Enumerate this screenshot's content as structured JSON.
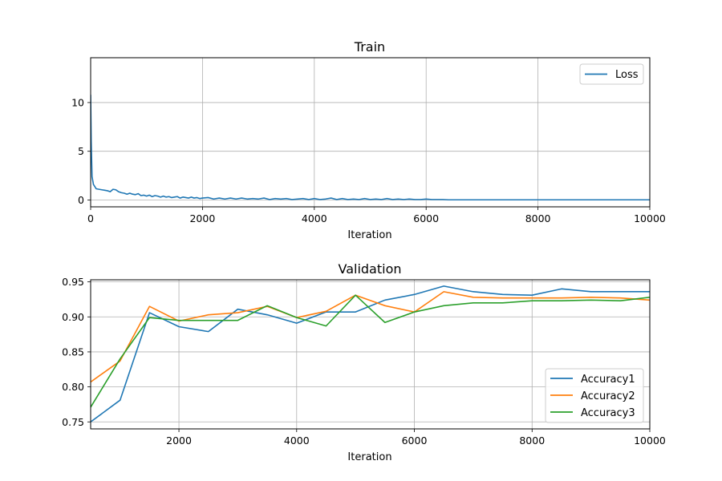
{
  "chart_data": [
    {
      "type": "line",
      "title": "Train",
      "xlabel": "Iteration",
      "ylabel": "",
      "xlim": [
        0,
        10000
      ],
      "ylim": [
        -0.7,
        14.6
      ],
      "xticks": [
        0,
        2000,
        4000,
        6000,
        8000,
        10000
      ],
      "yticks": [
        0,
        5,
        10
      ],
      "grid": true,
      "legend": "upper right",
      "series": [
        {
          "name": "Loss",
          "color": "#1f77b4",
          "x": [
            0,
            10,
            25,
            50,
            100,
            150,
            200,
            250,
            300,
            350,
            400,
            450,
            500,
            550,
            600,
            650,
            700,
            750,
            800,
            850,
            900,
            950,
            1000,
            1050,
            1100,
            1150,
            1200,
            1250,
            1300,
            1350,
            1400,
            1450,
            1500,
            1550,
            1600,
            1650,
            1700,
            1750,
            1800,
            1850,
            1900,
            1950,
            2000,
            2100,
            2200,
            2300,
            2400,
            2500,
            2600,
            2700,
            2800,
            2900,
            3000,
            3100,
            3200,
            3300,
            3400,
            3500,
            3600,
            3700,
            3800,
            3900,
            4000,
            4100,
            4200,
            4300,
            4400,
            4500,
            4600,
            4700,
            4800,
            4900,
            5000,
            5100,
            5200,
            5300,
            5400,
            5500,
            5600,
            5700,
            5800,
            5900,
            6000,
            6100,
            6200,
            6300,
            6400,
            6600,
            6800,
            7000,
            7500,
            8000,
            8500,
            9000,
            9500,
            10000
          ],
          "y": [
            10.8,
            6.0,
            2.4,
            1.6,
            1.15,
            1.1,
            1.05,
            1.0,
            0.95,
            0.85,
            1.1,
            1.05,
            0.85,
            0.75,
            0.7,
            0.6,
            0.7,
            0.6,
            0.55,
            0.65,
            0.45,
            0.5,
            0.4,
            0.5,
            0.35,
            0.45,
            0.4,
            0.3,
            0.4,
            0.3,
            0.35,
            0.25,
            0.3,
            0.35,
            0.2,
            0.3,
            0.25,
            0.2,
            0.3,
            0.2,
            0.25,
            0.15,
            0.2,
            0.25,
            0.1,
            0.2,
            0.1,
            0.2,
            0.1,
            0.2,
            0.1,
            0.15,
            0.1,
            0.2,
            0.05,
            0.15,
            0.1,
            0.15,
            0.05,
            0.1,
            0.15,
            0.05,
            0.15,
            0.05,
            0.1,
            0.2,
            0.05,
            0.15,
            0.05,
            0.1,
            0.05,
            0.15,
            0.05,
            0.1,
            0.05,
            0.15,
            0.05,
            0.1,
            0.05,
            0.1,
            0.05,
            0.05,
            0.1,
            0.05,
            0.05,
            0.05,
            0.02,
            0.02,
            0.02,
            0.02,
            0.02,
            0.02,
            0.02,
            0.02,
            0.02,
            0.02
          ]
        }
      ]
    },
    {
      "type": "line",
      "title": "Validation",
      "xlabel": "Iteration",
      "ylabel": "",
      "xlim": [
        500,
        10000
      ],
      "ylim": [
        0.74,
        0.953
      ],
      "xticks": [
        2000,
        4000,
        6000,
        8000,
        10000
      ],
      "yticks": [
        0.75,
        0.8,
        0.85,
        0.9,
        0.95
      ],
      "yticklabels": [
        "0.75",
        "0.80",
        "0.85",
        "0.90",
        "0.95"
      ],
      "grid": true,
      "legend": "lower right",
      "x": [
        500,
        1000,
        1500,
        2000,
        2500,
        3000,
        3500,
        4000,
        4500,
        5000,
        5500,
        6000,
        6500,
        7000,
        7500,
        8000,
        8500,
        9000,
        9500,
        10000
      ],
      "series": [
        {
          "name": "Accuracy1",
          "color": "#1f77b4",
          "values": [
            0.75,
            0.781,
            0.906,
            0.886,
            0.879,
            0.911,
            0.903,
            0.891,
            0.907,
            0.907,
            0.924,
            0.932,
            0.944,
            0.936,
            0.932,
            0.931,
            0.94,
            0.936,
            0.936,
            0.936
          ]
        },
        {
          "name": "Accuracy2",
          "color": "#ff7f0e",
          "values": [
            0.807,
            0.837,
            0.915,
            0.894,
            0.903,
            0.906,
            0.915,
            0.899,
            0.908,
            0.931,
            0.916,
            0.907,
            0.936,
            0.928,
            0.927,
            0.927,
            0.927,
            0.928,
            0.927,
            0.924
          ]
        },
        {
          "name": "Accuracy3",
          "color": "#2ca02c",
          "values": [
            0.771,
            0.84,
            0.899,
            0.895,
            0.895,
            0.895,
            0.916,
            0.899,
            0.887,
            0.931,
            0.892,
            0.907,
            0.916,
            0.92,
            0.92,
            0.923,
            0.923,
            0.924,
            0.923,
            0.928
          ]
        }
      ]
    }
  ]
}
